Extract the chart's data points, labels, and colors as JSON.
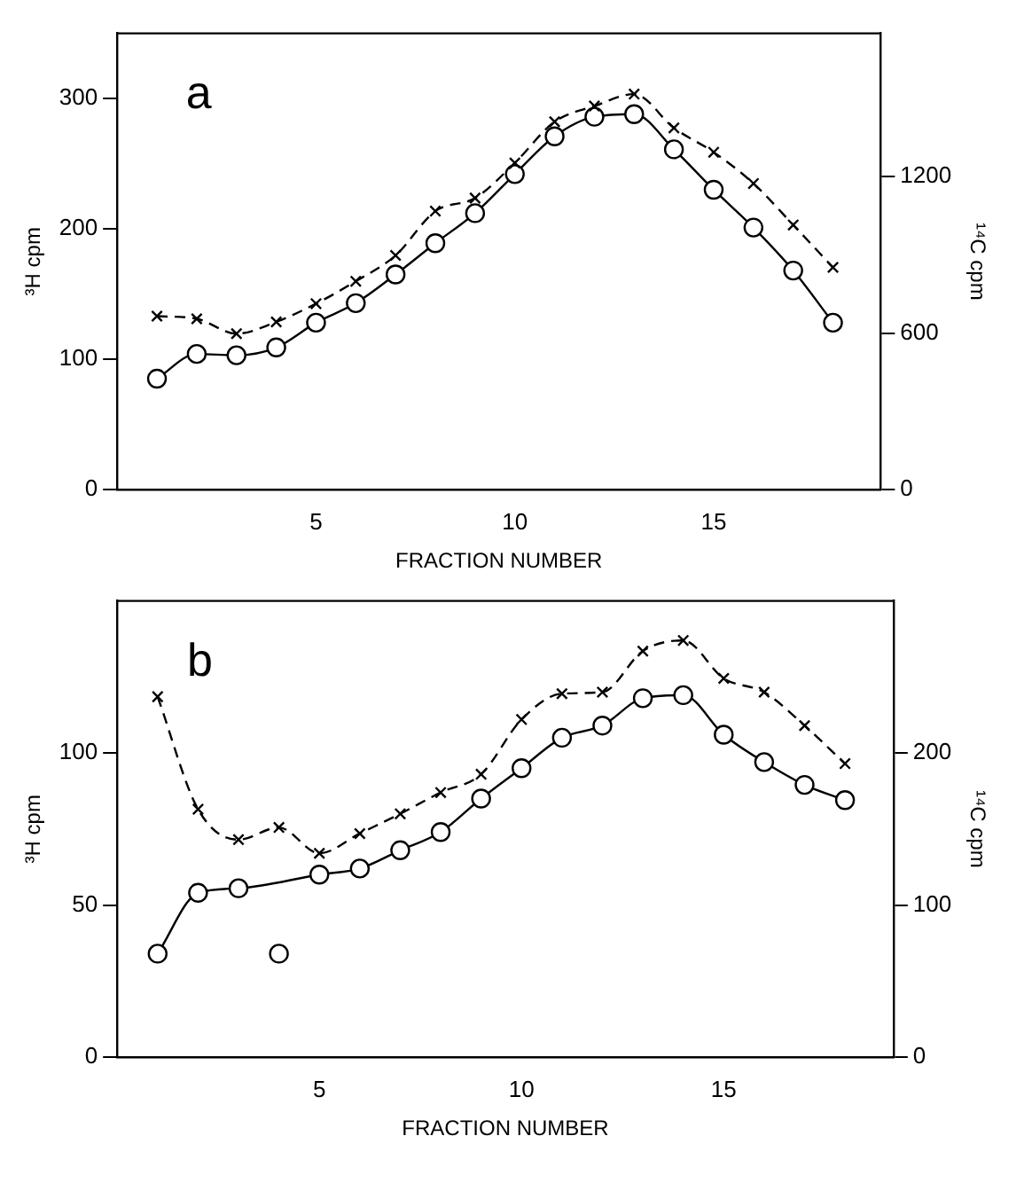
{
  "chart_data": [
    {
      "type": "line",
      "title": "a",
      "xlabel": "FRACTION NUMBER",
      "ylabel": "³H cpm",
      "y2label": "¹⁴C cpm",
      "x": [
        1,
        2,
        3,
        4,
        5,
        6,
        7,
        8,
        9,
        10,
        11,
        12,
        13,
        14,
        15,
        16,
        17,
        18
      ],
      "xlim": [
        0,
        19.2
      ],
      "xticks": [
        5,
        10,
        15
      ],
      "ylim": [
        0,
        350
      ],
      "yticks": [
        0,
        100,
        200,
        300
      ],
      "y2lim": [
        0,
        1750
      ],
      "y2ticks": [
        0,
        600,
        1200
      ],
      "grid": false,
      "legend": false,
      "series": [
        {
          "color": "#000000",
          "marker": "circle",
          "line_style": "solid",
          "values": [
            85,
            104,
            103,
            109,
            128,
            143,
            165,
            189,
            212,
            242,
            271,
            286,
            288,
            261,
            230,
            201,
            168,
            128
          ]
        },
        {
          "color": "#000000",
          "marker": "cross",
          "line_style": "dashed",
          "axis": "y2",
          "values": [
            665,
            655,
            598,
            643,
            713,
            799,
            898,
            1068,
            1118,
            1253,
            1411,
            1471,
            1517,
            1387,
            1294,
            1174,
            1015,
            852
          ]
        }
      ]
    },
    {
      "type": "line",
      "title": "b",
      "xlabel": "FRACTION NUMBER",
      "ylabel": "³H cpm",
      "y2label": "¹⁴C cpm",
      "x": [
        1,
        2,
        3,
        4,
        5,
        6,
        7,
        8,
        9,
        10,
        11,
        12,
        13,
        14,
        15,
        16,
        17,
        18
      ],
      "xlim": [
        0,
        19.2
      ],
      "xticks": [
        5,
        10,
        15
      ],
      "ylim": [
        0,
        150
      ],
      "yticks": [
        0,
        50,
        100
      ],
      "y2lim": [
        0,
        300
      ],
      "y2ticks": [
        0,
        100,
        200
      ],
      "grid": false,
      "legend": false,
      "series": [
        {
          "color": "#000000",
          "marker": "circle",
          "line_style": "solid",
          "values": [
            34,
            54,
            55.5,
            null,
            60,
            62,
            68,
            74,
            85,
            95,
            105,
            109,
            118,
            119,
            106,
            97,
            89.5,
            84.5
          ]
        },
        {
          "type": "scatter",
          "color": "#000000",
          "marker": "circle",
          "x": [
            4
          ],
          "values": [
            34
          ]
        },
        {
          "color": "#000000",
          "marker": "cross",
          "line_style": "dashed",
          "axis": "y2",
          "values": [
            237,
            163,
            143,
            151,
            134,
            147,
            160,
            174,
            186,
            222,
            239,
            240,
            267,
            274,
            249,
            240,
            218,
            193
          ]
        }
      ]
    }
  ]
}
